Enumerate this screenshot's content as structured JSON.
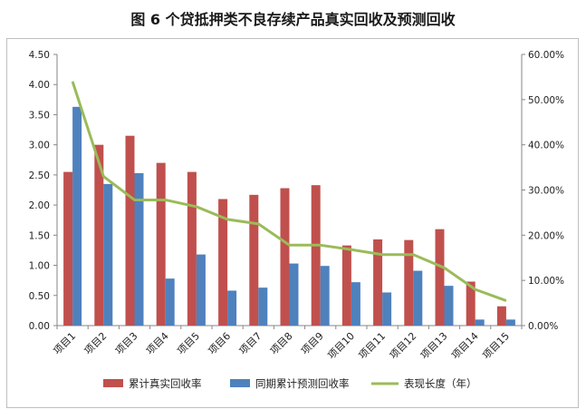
{
  "chart_data": {
    "type": "bar+line",
    "title": "图 6  个贷抵押类不良存续产品真实回收及预测回收",
    "categories": [
      "项目1",
      "项目2",
      "项目3",
      "项目4",
      "项目5",
      "项目6",
      "项目7",
      "项目8",
      "项目9",
      "项目10",
      "项目11",
      "项目12",
      "项目13",
      "项目14",
      "项目15"
    ],
    "series": [
      {
        "name": "累计真实回收率",
        "type": "bar",
        "axis": "left",
        "color": "#c0504d",
        "values": [
          2.55,
          3.0,
          3.15,
          2.7,
          2.55,
          2.1,
          2.17,
          2.28,
          2.33,
          1.33,
          1.43,
          1.42,
          1.6,
          0.73,
          0.32
        ]
      },
      {
        "name": "同期累计预测回收率",
        "type": "bar",
        "axis": "left",
        "color": "#4f81bd",
        "values": [
          3.63,
          2.35,
          2.53,
          0.78,
          1.18,
          0.58,
          0.63,
          1.03,
          0.99,
          0.72,
          0.55,
          0.91,
          0.66,
          0.1,
          0.1
        ]
      },
      {
        "name": "表现长度（年）",
        "type": "line",
        "axis": "right",
        "color": "#9bbb59",
        "values": [
          0.54,
          0.33,
          0.278,
          0.278,
          0.263,
          0.235,
          0.225,
          0.178,
          0.178,
          0.168,
          0.157,
          0.157,
          0.128,
          0.08,
          0.055
        ]
      }
    ],
    "y_left": {
      "min": 0,
      "max": 4.5,
      "step": 0.5,
      "tick_labels": [
        "0.00",
        "0.50",
        "1.00",
        "1.50",
        "2.00",
        "2.50",
        "3.00",
        "3.50",
        "4.00",
        "4.50"
      ]
    },
    "y_right": {
      "min": 0,
      "max": 0.6,
      "step": 0.1,
      "tick_labels": [
        "0.00%",
        "10.00%",
        "20.00%",
        "30.00%",
        "40.00%",
        "50.00%",
        "60.00%"
      ]
    },
    "legend_position": "bottom",
    "grid": false,
    "colors": {
      "axis": "#868686",
      "text": "#222222"
    }
  }
}
